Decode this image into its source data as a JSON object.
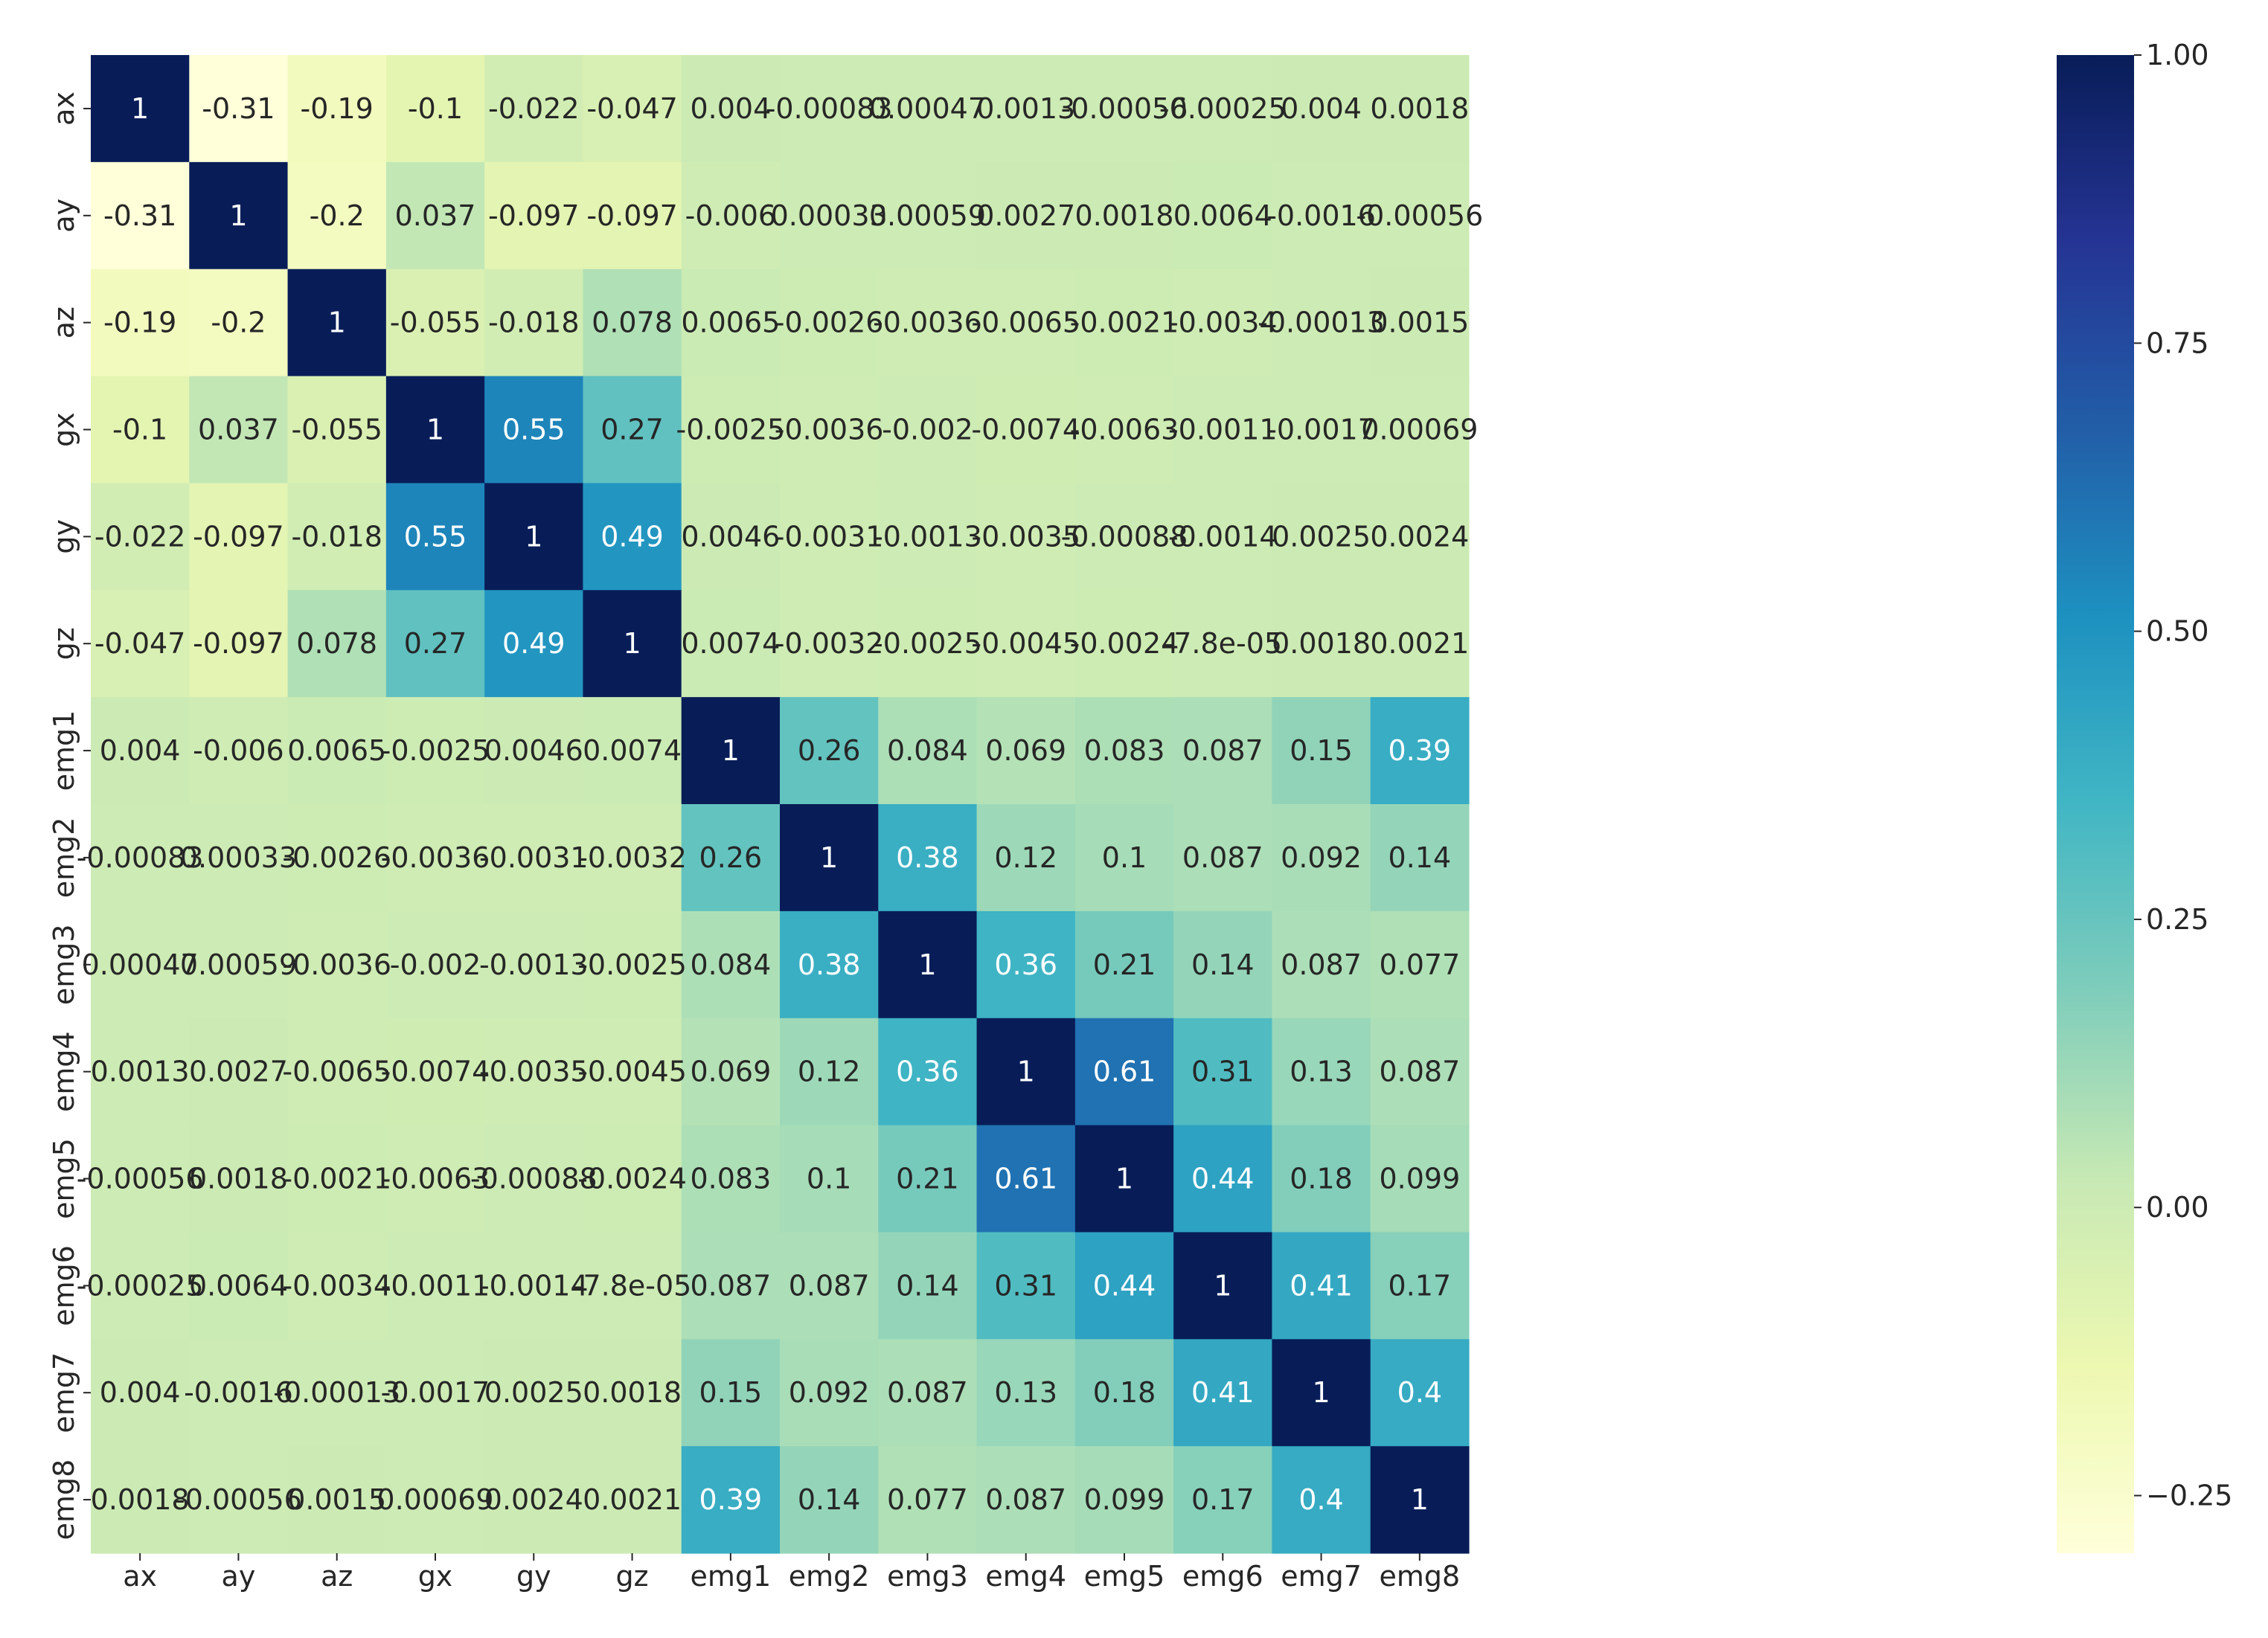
{
  "chart_data": {
    "type": "heatmap",
    "title": "",
    "xlabel": "",
    "ylabel": "",
    "x_labels": [
      "ax",
      "ay",
      "az",
      "gx",
      "gy",
      "gz",
      "emg1",
      "emg2",
      "emg3",
      "emg4",
      "emg5",
      "emg6",
      "emg7",
      "emg8"
    ],
    "y_labels": [
      "ax",
      "ay",
      "az",
      "gx",
      "gy",
      "gz",
      "emg1",
      "emg2",
      "emg3",
      "emg4",
      "emg5",
      "emg6",
      "emg7",
      "emg8"
    ],
    "cell_labels": [
      [
        "1",
        "-0.31",
        "-0.19",
        "-0.1",
        "-0.022",
        "-0.047",
        "0.004",
        "-0.00083",
        "0.00047",
        "0.0013",
        "-0.00056",
        "-0.00025",
        "0.004",
        "0.0018"
      ],
      [
        "-0.31",
        "1",
        "-0.2",
        "0.037",
        "-0.097",
        "-0.097",
        "-0.006",
        "0.00033",
        "0.00059",
        "0.0027",
        "0.0018",
        "0.0064",
        "-0.0016",
        "-0.00056"
      ],
      [
        "-0.19",
        "-0.2",
        "1",
        "-0.055",
        "-0.018",
        "0.078",
        "0.0065",
        "-0.0026",
        "-0.0036",
        "-0.0065",
        "-0.0021",
        "-0.0034",
        "-0.00013",
        "0.0015"
      ],
      [
        "-0.1",
        "0.037",
        "-0.055",
        "1",
        "0.55",
        "0.27",
        "-0.0025",
        "-0.0036",
        "-0.002",
        "-0.0074",
        "-0.0063",
        "-0.0011",
        "-0.0017",
        "0.00069"
      ],
      [
        "-0.022",
        "-0.097",
        "-0.018",
        "0.55",
        "1",
        "0.49",
        "0.0046",
        "-0.0031",
        "-0.0013",
        "-0.0035",
        "-0.00088",
        "-0.0014",
        "0.0025",
        "0.0024"
      ],
      [
        "-0.047",
        "-0.097",
        "0.078",
        "0.27",
        "0.49",
        "1",
        "0.0074",
        "-0.0032",
        "-0.0025",
        "-0.0045",
        "-0.0024",
        "-7.8e-05",
        "0.0018",
        "0.0021"
      ],
      [
        "0.004",
        "-0.006",
        "0.0065",
        "-0.0025",
        "0.0046",
        "0.0074",
        "1",
        "0.26",
        "0.084",
        "0.069",
        "0.083",
        "0.087",
        "0.15",
        "0.39"
      ],
      [
        "-0.00083",
        "0.00033",
        "-0.0026",
        "-0.0036",
        "-0.0031",
        "-0.0032",
        "0.26",
        "1",
        "0.38",
        "0.12",
        "0.1",
        "0.087",
        "0.092",
        "0.14"
      ],
      [
        "0.00047",
        "0.00059",
        "-0.0036",
        "-0.002",
        "-0.0013",
        "-0.0025",
        "0.084",
        "0.38",
        "1",
        "0.36",
        "0.21",
        "0.14",
        "0.087",
        "0.077"
      ],
      [
        "0.0013",
        "0.0027",
        "-0.0065",
        "-0.0074",
        "-0.0035",
        "-0.0045",
        "0.069",
        "0.12",
        "0.36",
        "1",
        "0.61",
        "0.31",
        "0.13",
        "0.087"
      ],
      [
        "-0.00056",
        "0.0018",
        "-0.0021",
        "-0.0063",
        "-0.00088",
        "-0.0024",
        "0.083",
        "0.1",
        "0.21",
        "0.61",
        "1",
        "0.44",
        "0.18",
        "0.099"
      ],
      [
        "-0.00025",
        "0.0064",
        "-0.0034",
        "-0.0011",
        "-0.0014",
        "-7.8e-05",
        "0.087",
        "0.087",
        "0.14",
        "0.31",
        "0.44",
        "1",
        "0.41",
        "0.17"
      ],
      [
        "0.004",
        "-0.0016",
        "-0.00013",
        "-0.0017",
        "0.0025",
        "0.0018",
        "0.15",
        "0.092",
        "0.087",
        "0.13",
        "0.18",
        "0.41",
        "1",
        "0.4"
      ],
      [
        "0.0018",
        "-0.00056",
        "0.0015",
        "0.00069",
        "0.0024",
        "0.0021",
        "0.39",
        "0.14",
        "0.077",
        "0.087",
        "0.099",
        "0.17",
        "0.4",
        "1"
      ]
    ],
    "colorbar": {
      "colormap": "YlGnBu",
      "vmin": -0.3,
      "vmax": 1.0,
      "ticks": [
        1.0,
        0.75,
        0.5,
        0.25,
        0.0,
        -0.25
      ],
      "tick_labels": [
        "1.00",
        "0.75",
        "0.50",
        "0.25",
        "0.00",
        "−0.25"
      ]
    },
    "colormap_stops": [
      "#ffffd9",
      "#edf8b1",
      "#c7e9b4",
      "#7fcdbb",
      "#41b6c4",
      "#1d91c0",
      "#225ea8",
      "#253494",
      "#081d58"
    ],
    "text_dark": "#262626",
    "text_light": "#ffffff"
  }
}
